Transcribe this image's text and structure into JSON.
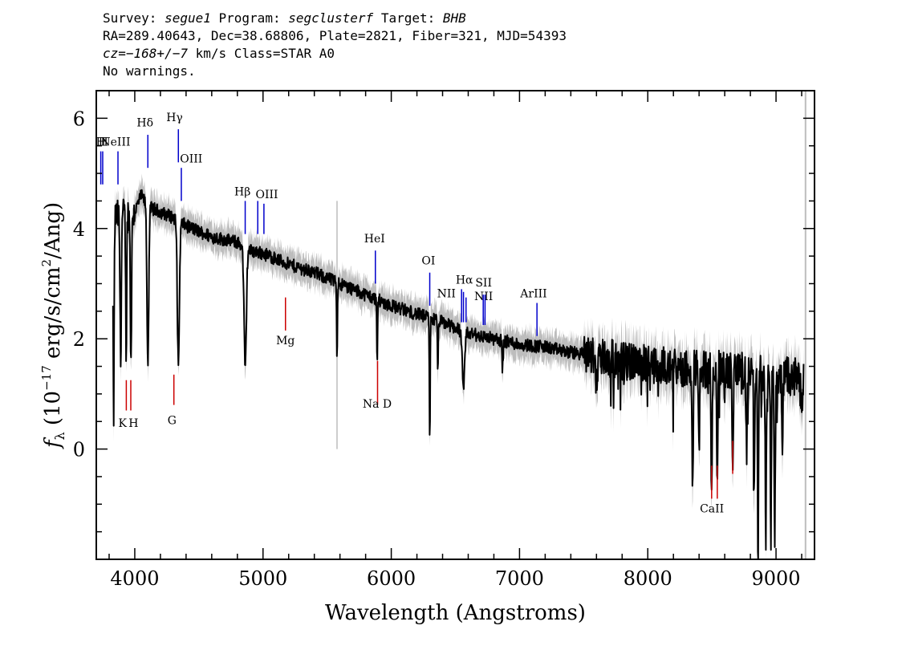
{
  "header": {
    "line1": {
      "survey_label": "Survey:",
      "survey": "segue1",
      "program_label": "Program:",
      "program": "segclusterf",
      "target_label": "Target:",
      "target": "BHB"
    },
    "line2": "RA=289.40643, Dec=38.68806, Plate=2821, Fiber=321, MJD=54393",
    "line3": {
      "cz": "cz=−168+/−7",
      "rest": " km/s Class=STAR A0"
    },
    "line4": "No warnings."
  },
  "chart_data": {
    "type": "line",
    "xlabel": "Wavelength (Angstroms)",
    "ylabel_main": "f",
    "ylabel_sub": "λ",
    "ylabel_rest": " (10",
    "ylabel_exp1": "−17",
    "ylabel_rest2": " erg/s/cm",
    "ylabel_exp2": "2",
    "ylabel_rest3": "/Ang)",
    "xlim": [
      3700,
      9300
    ],
    "ylim": [
      -2,
      6.5
    ],
    "x_ticks": [
      4000,
      5000,
      6000,
      7000,
      8000,
      9000
    ],
    "x_tick_labels": [
      "4000",
      "5000",
      "6000",
      "7000",
      "8000",
      "9000"
    ],
    "y_ticks": [
      0,
      2,
      4,
      6
    ],
    "y_tick_labels": [
      "0",
      "2",
      "4",
      "6"
    ],
    "colors": {
      "spectrum": "#000000",
      "error": "#bdbdbd",
      "emission": "#0000cc",
      "absorption": "#cc0000"
    },
    "continuum": [
      [
        3830,
        4.2
      ],
      [
        3900,
        4.25
      ],
      [
        4000,
        4.3
      ],
      [
        4050,
        4.6
      ],
      [
        4100,
        4.4
      ],
      [
        4200,
        4.3
      ],
      [
        4300,
        4.2
      ],
      [
        4400,
        4.05
      ],
      [
        4500,
        3.95
      ],
      [
        4600,
        3.85
      ],
      [
        4700,
        3.8
      ],
      [
        4800,
        3.75
      ],
      [
        4900,
        3.6
      ],
      [
        5000,
        3.55
      ],
      [
        5100,
        3.45
      ],
      [
        5200,
        3.35
      ],
      [
        5400,
        3.2
      ],
      [
        5600,
        3.0
      ],
      [
        5800,
        2.8
      ],
      [
        6000,
        2.6
      ],
      [
        6200,
        2.45
      ],
      [
        6400,
        2.3
      ],
      [
        6600,
        2.1
      ],
      [
        6800,
        2.0
      ],
      [
        7000,
        1.9
      ],
      [
        7200,
        1.85
      ],
      [
        7400,
        1.75
      ],
      [
        7600,
        1.7
      ],
      [
        7800,
        1.6
      ],
      [
        8000,
        1.55
      ],
      [
        8200,
        1.5
      ],
      [
        8400,
        1.45
      ],
      [
        8600,
        1.45
      ],
      [
        8800,
        1.4
      ],
      [
        9000,
        1.35
      ],
      [
        9200,
        1.3
      ]
    ],
    "absorption_features": [
      {
        "x": 3835,
        "depth": 3.7,
        "w": 4
      },
      {
        "x": 3890,
        "depth": 2.6,
        "w": 5
      },
      {
        "x": 3933,
        "depth": 2.5,
        "w": 4
      },
      {
        "x": 3970,
        "depth": 2.6,
        "w": 5
      },
      {
        "x": 4102,
        "depth": 2.8,
        "w": 7
      },
      {
        "x": 4340,
        "depth": 2.6,
        "w": 8
      },
      {
        "x": 4861,
        "depth": 2.2,
        "w": 9
      },
      {
        "x": 5577,
        "depth": 1.3,
        "w": 3
      },
      {
        "x": 5890,
        "depth": 1.2,
        "w": 3
      },
      {
        "x": 6300,
        "depth": 2.3,
        "w": 3
      },
      {
        "x": 6363,
        "depth": 1.0,
        "w": 3
      },
      {
        "x": 6563,
        "depth": 1.0,
        "w": 10
      },
      {
        "x": 6867,
        "depth": 0.5,
        "w": 4
      },
      {
        "x": 7600,
        "depth": 0.6,
        "w": 6
      },
      {
        "x": 8350,
        "depth": 2.2,
        "w": 4
      },
      {
        "x": 8400,
        "depth": 1.5,
        "w": 4
      },
      {
        "x": 8498,
        "depth": 2.3,
        "w": 4
      },
      {
        "x": 8542,
        "depth": 2.2,
        "w": 4
      },
      {
        "x": 8662,
        "depth": 1.8,
        "w": 4
      },
      {
        "x": 8770,
        "depth": 1.5,
        "w": 4
      },
      {
        "x": 8830,
        "depth": 2.2,
        "w": 4
      },
      {
        "x": 8860,
        "depth": 3.4,
        "w": 4
      },
      {
        "x": 8920,
        "depth": 3.0,
        "w": 4
      },
      {
        "x": 8960,
        "depth": 2.8,
        "w": 4
      },
      {
        "x": 8990,
        "depth": 3.2,
        "w": 4
      },
      {
        "x": 9050,
        "depth": 1.5,
        "w": 4
      },
      {
        "x": 9200,
        "depth": 0.8,
        "w": 4
      }
    ],
    "emission_lines": [
      {
        "label": "H",
        "x": 3735,
        "y1": 4.8,
        "y2": 5.4,
        "tx": 3735,
        "ty": 5.5
      },
      {
        "label": "H",
        "x": 3750,
        "y1": 4.8,
        "y2": 5.4,
        "tx": 3755,
        "ty": 5.5
      },
      {
        "label": "NeIII",
        "x": 3869,
        "y1": 4.8,
        "y2": 5.4,
        "tx": 3850,
        "ty": 5.5
      },
      {
        "label": "Hδ",
        "x": 4102,
        "y1": 5.1,
        "y2": 5.7,
        "tx": 4080,
        "ty": 5.85
      },
      {
        "label": "Hγ",
        "x": 4340,
        "y1": 5.2,
        "y2": 5.8,
        "tx": 4310,
        "ty": 5.95
      },
      {
        "label": "OIII",
        "x": 4363,
        "y1": 4.5,
        "y2": 5.1,
        "tx": 4440,
        "ty": 5.2
      },
      {
        "label": "Hβ",
        "x": 4861,
        "y1": 3.9,
        "y2": 4.5,
        "tx": 4840,
        "ty": 4.6
      },
      {
        "label": "OIII",
        "x": 4959,
        "y1": 3.9,
        "y2": 4.5,
        "tx": 5030,
        "ty": 4.55
      },
      {
        "label": "OIII",
        "x": 5007,
        "y1": 3.9,
        "y2": 4.45,
        "tx": 5030,
        "ty": 4.55
      },
      {
        "label": "HeI",
        "x": 5876,
        "y1": 3.0,
        "y2": 3.6,
        "tx": 5870,
        "ty": 3.75
      },
      {
        "label": "OI",
        "x": 6300,
        "y1": 2.6,
        "y2": 3.2,
        "tx": 6290,
        "ty": 3.35
      },
      {
        "label": "NII",
        "x": 6548,
        "y1": 2.3,
        "y2": 2.9,
        "tx": 6430,
        "ty": 2.75
      },
      {
        "label": "Hα",
        "x": 6563,
        "y1": 2.3,
        "y2": 2.85,
        "tx": 6570,
        "ty": 3.0
      },
      {
        "label": "NII",
        "x": 6583,
        "y1": 2.3,
        "y2": 2.75,
        "tx": 6720,
        "ty": 2.7
      },
      {
        "label": "SII",
        "x": 6717,
        "y1": 2.25,
        "y2": 2.8,
        "tx": 6720,
        "ty": 2.95
      },
      {
        "label": "SII",
        "x": 6731,
        "y1": 2.25,
        "y2": 2.8,
        "tx": 6720,
        "ty": 2.95
      },
      {
        "label": "ArIII",
        "x": 7136,
        "y1": 2.05,
        "y2": 2.65,
        "tx": 7110,
        "ty": 2.75
      }
    ],
    "absorption_lines": [
      {
        "label": "K",
        "x": 3934,
        "y1": 0.7,
        "y2": 1.25,
        "tx": 3905,
        "ty": 0.4
      },
      {
        "label": "H",
        "x": 3969,
        "y1": 0.7,
        "y2": 1.25,
        "tx": 3990,
        "ty": 0.4
      },
      {
        "label": "G",
        "x": 4305,
        "y1": 0.8,
        "y2": 1.35,
        "tx": 4290,
        "ty": 0.45
      },
      {
        "label": "Mg",
        "x": 5175,
        "y1": 2.15,
        "y2": 2.75,
        "tx": 5175,
        "ty": 1.9
      },
      {
        "label": "Na D",
        "x": 5893,
        "y1": 0.8,
        "y2": 1.6,
        "tx": 5890,
        "ty": 0.75
      },
      {
        "label": "CaII",
        "x": 8498,
        "y1": -0.9,
        "y2": -0.3,
        "tx": 8500,
        "ty": -1.15
      },
      {
        "label": "CaII",
        "x": 8542,
        "y1": -0.9,
        "y2": -0.3,
        "tx": 8500,
        "ty": -1.15
      },
      {
        "label": "CaII",
        "x": 8662,
        "y1": -0.45,
        "y2": 0.15,
        "tx": 8500,
        "ty": -1.15
      }
    ]
  }
}
